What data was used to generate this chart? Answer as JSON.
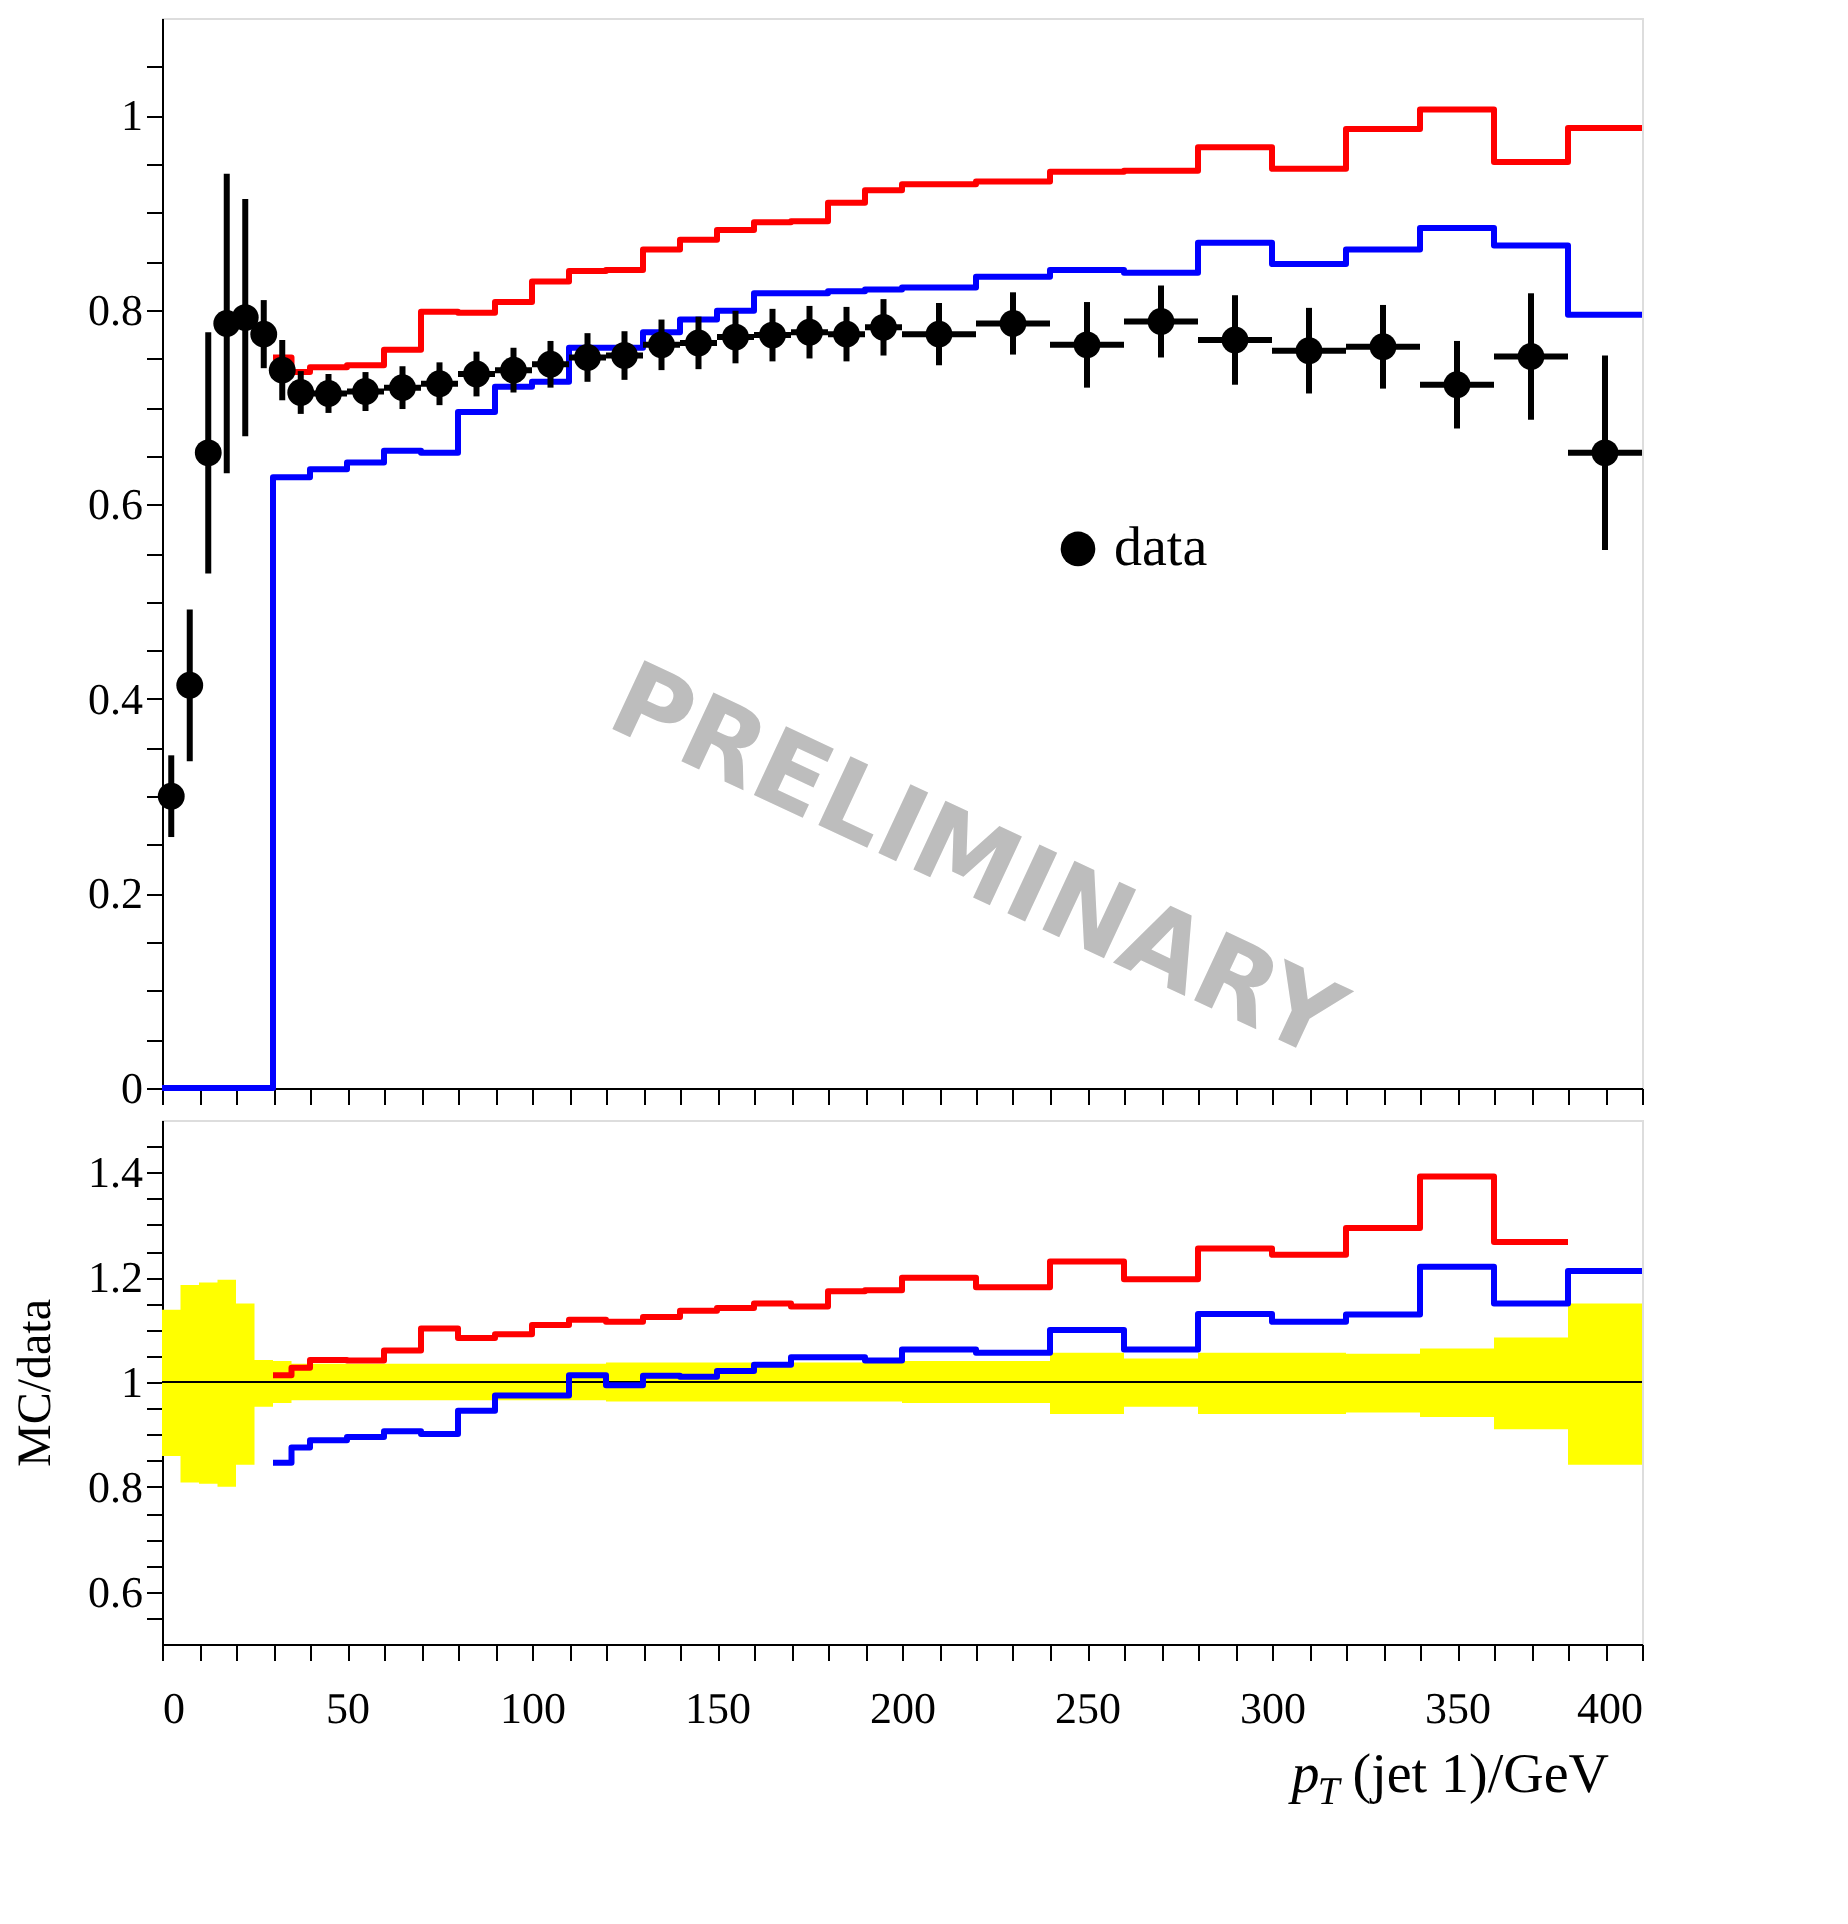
{
  "chart_data": [
    {
      "type": "step",
      "xlim": [
        0,
        400
      ],
      "ylim": [
        0,
        1.1
      ],
      "tick_labels": "y",
      "grid": false,
      "legend": "right",
      "xticks": [
        0,
        {
          "value": 10,
          "label": null
        },
        {
          "value": 20,
          "label": null
        },
        {
          "value": 30,
          "label": null
        },
        {
          "value": 40,
          "label": null
        },
        50,
        {
          "value": 60,
          "label": null
        },
        {
          "value": 70,
          "label": null
        },
        {
          "value": 80,
          "label": null
        },
        {
          "value": 90,
          "label": null
        },
        100,
        {
          "value": 110,
          "label": null
        },
        {
          "value": 120,
          "label": null
        },
        {
          "value": 130,
          "label": null
        },
        {
          "value": 140,
          "label": null
        },
        150,
        {
          "value": 160,
          "label": null
        },
        {
          "value": 170,
          "label": null
        },
        {
          "value": 180,
          "label": null
        },
        {
          "value": 190,
          "label": null
        },
        200,
        {
          "value": 210,
          "label": null
        },
        {
          "value": 220,
          "label": null
        },
        {
          "value": 230,
          "label": null
        },
        {
          "value": 240,
          "label": null
        },
        250,
        {
          "value": 260,
          "label": null
        },
        {
          "value": 270,
          "label": null
        },
        {
          "value": 280,
          "label": null
        },
        {
          "value": 290,
          "label": null
        },
        300,
        {
          "value": 310,
          "label": null
        },
        {
          "value": 320,
          "label": null
        },
        {
          "value": 330,
          "label": null
        },
        {
          "value": 340,
          "label": null
        },
        350,
        {
          "value": 360,
          "label": null
        },
        {
          "value": 370,
          "label": null
        },
        {
          "value": 380,
          "label": null
        },
        {
          "value": 390,
          "label": null
        },
        400
      ],
      "yticks": [
        0,
        {
          "value": 0.05,
          "label": null
        },
        {
          "value": 0.1,
          "label": null
        },
        {
          "value": 0.15,
          "label": null
        },
        0.2,
        {
          "value": 0.25,
          "label": null
        },
        {
          "value": 0.3,
          "label": null
        },
        {
          "value": 0.35,
          "label": null
        },
        0.4,
        {
          "value": 0.45,
          "label": null
        },
        {
          "value": 0.5,
          "label": null
        },
        {
          "value": 0.55,
          "label": null
        },
        0.6,
        {
          "value": 0.65,
          "label": null
        },
        {
          "value": 0.7,
          "label": null
        },
        {
          "value": 0.75,
          "label": null
        },
        0.8,
        {
          "value": 0.85,
          "label": null
        },
        {
          "value": 0.9,
          "label": null
        },
        {
          "value": 0.95,
          "label": null
        },
        1,
        {
          "value": 1.05,
          "label": null
        }
      ],
      "annotations": [
        "PRELIMINARY"
      ],
      "series": [
        {
          "color": "#ff0000",
          "x": [
            30,
            35,
            40,
            50,
            60,
            70,
            80,
            90,
            100,
            110,
            120,
            130,
            140,
            150,
            160,
            170,
            180,
            190,
            200,
            220,
            240,
            260,
            280,
            300,
            320,
            340,
            360,
            380,
            400
          ],
          "values": [
            0.751,
            0.736,
            0.741,
            0.743,
            0.759,
            0.798,
            0.797,
            0.808,
            0.829,
            0.84,
            0.841,
            0.862,
            0.872,
            0.882,
            0.89,
            0.891,
            0.91,
            0.923,
            0.929,
            0.932,
            0.942,
            0.943,
            0.967,
            0.945,
            0.986,
            1.006,
            0.952,
            0.987,
            0.987
          ]
        },
        {
          "color": "#0000ff",
          "x": [
            0,
            30,
            35,
            40,
            50,
            60,
            70,
            80,
            90,
            100,
            110,
            120,
            130,
            140,
            150,
            160,
            170,
            180,
            190,
            200,
            220,
            240,
            260,
            280,
            300,
            320,
            340,
            360,
            380,
            400
          ],
          "values": [
            0,
            0.628,
            0.628,
            0.636,
            0.643,
            0.655,
            0.653,
            0.695,
            0.721,
            0.726,
            0.761,
            0.761,
            0.777,
            0.79,
            0.799,
            0.817,
            0.817,
            0.819,
            0.821,
            0.823,
            0.834,
            0.841,
            0.838,
            0.869,
            0.847,
            0.862,
            0.884,
            0.866,
            0.795,
            0.795
          ]
        },
        {
          "type": "scatter",
          "name": "data",
          "color": "#000000",
          "marker": "circle",
          "x": [
            2.5,
            7.5,
            12.5,
            17.5,
            22.5,
            27.5,
            32.5,
            37.5,
            45,
            55,
            65,
            75,
            85,
            95,
            105,
            115,
            125,
            135,
            145,
            155,
            165,
            175,
            185,
            195,
            210,
            230,
            250,
            270,
            290,
            310,
            330,
            350,
            370,
            390
          ],
          "values": [
            0.3,
            0.414,
            0.653,
            0.786,
            0.792,
            0.775,
            0.738,
            0.715,
            0.714,
            0.716,
            0.72,
            0.724,
            0.734,
            0.738,
            0.744,
            0.751,
            0.753,
            0.764,
            0.766,
            0.772,
            0.774,
            0.777,
            0.775,
            0.782,
            0.775,
            0.786,
            0.764,
            0.788,
            0.769,
            0.758,
            0.762,
            0.723,
            0.752,
            0.653
          ],
          "errors": [
            0.042,
            0.078,
            0.124,
            0.154,
            0.122,
            0.035,
            0.031,
            0.022,
            0.02,
            0.02,
            0.022,
            0.022,
            0.023,
            0.023,
            0.024,
            0.025,
            0.025,
            0.026,
            0.027,
            0.027,
            0.027,
            0.027,
            0.028,
            0.029,
            0.032,
            0.032,
            0.044,
            0.037,
            0.046,
            0.044,
            0.043,
            0.045,
            0.065,
            0.1
          ],
          "xerrors": [
            2.5,
            2.5,
            2.5,
            2.5,
            2.5,
            2.5,
            2.5,
            2.5,
            5,
            5,
            5,
            5,
            5,
            5,
            5,
            5,
            5,
            5,
            5,
            5,
            5,
            5,
            5,
            5,
            10,
            10,
            10,
            10,
            10,
            10,
            10,
            10,
            10,
            10
          ]
        }
      ]
    },
    {
      "type": "step",
      "xlim": [
        0,
        400
      ],
      "ylim": [
        0.5,
        1.5
      ],
      "grid": false,
      "ylabel": "MC/data",
      "xlabel": "p$_{T}$(jet 1)/GeV",
      "xticks": [
        0,
        {
          "value": 10,
          "label": null
        },
        {
          "value": 20,
          "label": null
        },
        {
          "value": 30,
          "label": null
        },
        {
          "value": 40,
          "label": null
        },
        50,
        {
          "value": 60,
          "label": null
        },
        {
          "value": 70,
          "label": null
        },
        {
          "value": 80,
          "label": null
        },
        {
          "value": 90,
          "label": null
        },
        100,
        {
          "value": 110,
          "label": null
        },
        {
          "value": 120,
          "label": null
        },
        {
          "value": 130,
          "label": null
        },
        {
          "value": 140,
          "label": null
        },
        150,
        {
          "value": 160,
          "label": null
        },
        {
          "value": 170,
          "label": null
        },
        {
          "value": 180,
          "label": null
        },
        {
          "value": 190,
          "label": null
        },
        200,
        {
          "value": 210,
          "label": null
        },
        {
          "value": 220,
          "label": null
        },
        {
          "value": 230,
          "label": null
        },
        {
          "value": 240,
          "label": null
        },
        250,
        {
          "value": 260,
          "label": null
        },
        {
          "value": 270,
          "label": null
        },
        {
          "value": 280,
          "label": null
        },
        {
          "value": 290,
          "label": null
        },
        300,
        {
          "value": 310,
          "label": null
        },
        {
          "value": 320,
          "label": null
        },
        {
          "value": 330,
          "label": null
        },
        {
          "value": 340,
          "label": null
        },
        350,
        {
          "value": 360,
          "label": null
        },
        {
          "value": 370,
          "label": null
        },
        {
          "value": 380,
          "label": null
        },
        {
          "value": 390,
          "label": null
        },
        400
      ],
      "yticks": [
        {
          "value": 0.55,
          "label": null
        },
        0.6,
        {
          "value": 0.65,
          "label": null
        },
        {
          "value": 0.7,
          "label": null
        },
        {
          "value": 0.75,
          "label": null
        },
        0.8,
        {
          "value": 0.85,
          "label": null
        },
        {
          "value": 0.9,
          "label": null
        },
        {
          "value": 0.95,
          "label": null
        },
        1,
        {
          "value": 1.05,
          "label": null
        },
        {
          "value": 1.1,
          "label": null
        },
        {
          "value": 1.15,
          "label": null
        },
        1.2,
        {
          "value": 1.25,
          "label": null
        },
        {
          "value": 1.3,
          "label": null
        },
        {
          "value": 1.35,
          "label": null
        },
        1.4,
        {
          "value": 1.45,
          "label": null
        }
      ],
      "series": [
        {
          "color": "#000000",
          "x": [
            0,
            5,
            10,
            15,
            20,
            25,
            30,
            35,
            40,
            50,
            60,
            70,
            80,
            90,
            100,
            110,
            120,
            130,
            140,
            150,
            160,
            170,
            180,
            190,
            200,
            220,
            240,
            260,
            280,
            300,
            320,
            340,
            360,
            380,
            400
          ],
          "values": [
            1,
            1,
            1,
            1,
            1,
            1,
            1,
            1,
            1,
            1,
            1,
            1,
            1,
            1,
            1,
            1,
            1,
            1,
            1,
            1,
            1,
            1,
            1,
            1,
            1,
            1,
            1,
            1,
            1,
            1,
            1,
            1,
            1,
            1,
            1
          ],
          "lower": [
            0.859,
            0.808,
            0.806,
            0.8,
            0.842,
            0.953,
            0.96,
            0.965,
            0.965,
            0.965,
            0.965,
            0.965,
            0.965,
            0.965,
            0.965,
            0.965,
            0.963,
            0.963,
            0.963,
            0.963,
            0.963,
            0.963,
            0.963,
            0.963,
            0.96,
            0.96,
            0.939,
            0.953,
            0.939,
            0.939,
            0.942,
            0.933,
            0.91,
            0.842,
            0.842
          ],
          "upper": [
            1.138,
            1.185,
            1.19,
            1.195,
            1.15,
            1.042,
            1.04,
            1.035,
            1.035,
            1.035,
            1.035,
            1.035,
            1.035,
            1.035,
            1.035,
            1.035,
            1.037,
            1.037,
            1.037,
            1.037,
            1.037,
            1.037,
            1.037,
            1.037,
            1.04,
            1.04,
            1.056,
            1.045,
            1.056,
            1.056,
            1.054,
            1.064,
            1.085,
            1.15,
            1.15
          ]
        },
        {
          "color": "#0000ff",
          "x": [
            30,
            35,
            40,
            50,
            60,
            70,
            80,
            90,
            100,
            110,
            120,
            130,
            140,
            150,
            160,
            170,
            180,
            190,
            200,
            220,
            240,
            260,
            280,
            300,
            320,
            340,
            360,
            380,
            400
          ],
          "values": [
            0.846,
            0.875,
            0.889,
            0.895,
            0.906,
            0.901,
            0.945,
            0.974,
            0.974,
            1.013,
            0.994,
            1.012,
            1.01,
            1.021,
            1.033,
            1.047,
            1.047,
            1.041,
            1.062,
            1.056,
            1.099,
            1.062,
            1.13,
            1.115,
            1.129,
            1.22,
            1.15,
            1.212,
            1.212
          ]
        },
        {
          "color": "#ff0000",
          "x": [
            30,
            35,
            40,
            50,
            60,
            70,
            80,
            90,
            100,
            110,
            120,
            130,
            140,
            150,
            160,
            170,
            180,
            190,
            200,
            220,
            240,
            260,
            280,
            300,
            320,
            340,
            360,
            380
          ],
          "values": [
            1.013,
            1.027,
            1.042,
            1.041,
            1.06,
            1.102,
            1.084,
            1.091,
            1.109,
            1.119,
            1.115,
            1.124,
            1.136,
            1.141,
            1.15,
            1.144,
            1.173,
            1.175,
            1.199,
            1.181,
            1.23,
            1.196,
            1.255,
            1.243,
            1.294,
            1.392,
            1.267,
            1.267
          ]
        }
      ]
    }
  ]
}
